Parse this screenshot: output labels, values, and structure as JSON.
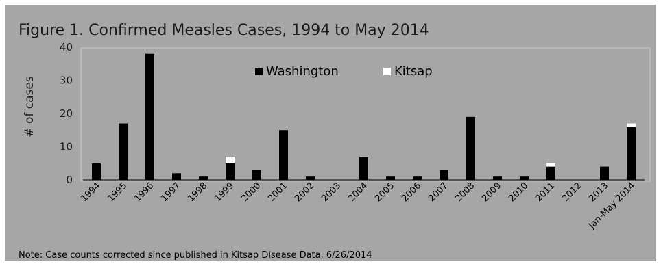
{
  "chart_data": {
    "type": "bar",
    "stacked": true,
    "title": "Figure 1. Confirmed Measles Cases, 1994 to May 2014",
    "ylabel": "# of cases",
    "xlabel": "",
    "ylim": [
      0,
      40
    ],
    "yticks": [
      0,
      10,
      20,
      30,
      40
    ],
    "grid": false,
    "legend_position": "top-center",
    "categories": [
      "1994",
      "1995",
      "1996",
      "1997",
      "1998",
      "1999",
      "2000",
      "2001",
      "2002",
      "2003",
      "2004",
      "2005",
      "2006",
      "2007",
      "2008",
      "2009",
      "2010",
      "2011",
      "2012",
      "2013",
      "Jan-May 2014"
    ],
    "series": [
      {
        "name": "Washington",
        "color": "#000000",
        "values": [
          5,
          17,
          38,
          2,
          1,
          5,
          3,
          15,
          1,
          0,
          7,
          1,
          1,
          3,
          19,
          1,
          1,
          4,
          0,
          4,
          16
        ]
      },
      {
        "name": "Kitsap",
        "color": "#ffffff",
        "values": [
          0,
          0,
          0,
          0,
          0,
          2,
          0,
          0,
          0,
          0,
          0,
          0,
          0,
          0,
          0,
          0,
          0,
          1,
          0,
          0,
          1
        ]
      }
    ],
    "note": "Note: Case counts corrected since published in Kitsap Disease Data, 6/26/2014"
  }
}
